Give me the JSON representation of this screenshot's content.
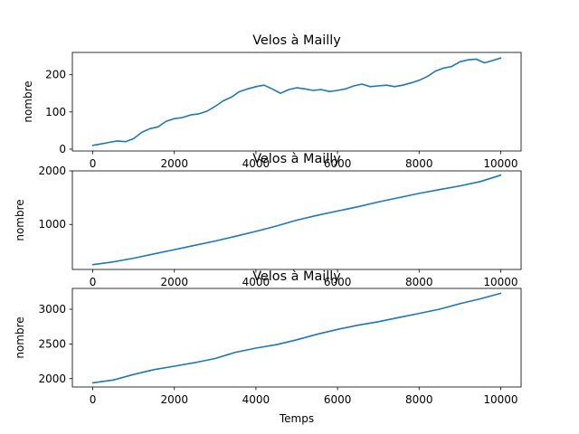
{
  "chart_data": [
    {
      "type": "line",
      "title": "Velos à Mailly",
      "xlabel": "",
      "ylabel": "nombre",
      "xlim": [
        -500,
        10500
      ],
      "ylim": [
        -5,
        260
      ],
      "xticks": [
        0,
        2000,
        4000,
        6000,
        8000,
        10000
      ],
      "yticks": [
        0,
        100,
        200
      ],
      "grid": false,
      "color": "#1f77b4",
      "series": [
        {
          "x": [
            0,
            200,
            400,
            600,
            800,
            1000,
            1200,
            1400,
            1600,
            1800,
            2000,
            2200,
            2400,
            2600,
            2800,
            3000,
            3200,
            3400,
            3600,
            3800,
            4000,
            4200,
            4400,
            4600,
            4800,
            5000,
            5200,
            5400,
            5600,
            5800,
            6000,
            6200,
            6400,
            6600,
            6800,
            7000,
            7200,
            7400,
            7600,
            7800,
            8000,
            8200,
            8400,
            8600,
            8800,
            9000,
            9200,
            9400,
            9600,
            9800,
            10000
          ],
          "y": [
            10,
            14,
            18,
            22,
            20,
            28,
            45,
            55,
            60,
            75,
            82,
            85,
            92,
            95,
            102,
            115,
            130,
            140,
            155,
            162,
            168,
            172,
            162,
            150,
            160,
            165,
            162,
            158,
            160,
            155,
            158,
            162,
            170,
            175,
            168,
            170,
            172,
            168,
            172,
            178,
            185,
            195,
            210,
            218,
            222,
            235,
            240,
            242,
            232,
            238,
            245
          ]
        }
      ]
    },
    {
      "type": "line",
      "title": "Velos à Mailly",
      "xlabel": "",
      "ylabel": "nombre",
      "xlim": [
        -500,
        10500
      ],
      "ylim": [
        160,
        2000
      ],
      "xticks": [
        0,
        2000,
        4000,
        6000,
        8000,
        10000
      ],
      "yticks": [
        1000,
        2000
      ],
      "grid": false,
      "color": "#1f77b4",
      "series": [
        {
          "x": [
            0,
            500,
            1000,
            1500,
            2000,
            2500,
            3000,
            3500,
            4000,
            4500,
            5000,
            5500,
            6000,
            6500,
            7000,
            7500,
            8000,
            8500,
            9000,
            9500,
            10000
          ],
          "y": [
            250,
            300,
            370,
            450,
            530,
            610,
            690,
            780,
            870,
            970,
            1080,
            1170,
            1250,
            1330,
            1420,
            1500,
            1580,
            1650,
            1720,
            1800,
            1920
          ]
        }
      ]
    },
    {
      "type": "line",
      "title": "Velos à Mailly",
      "xlabel": "Temps",
      "ylabel": "nombre",
      "xlim": [
        -500,
        10500
      ],
      "ylim": [
        1880,
        3300
      ],
      "xticks": [
        0,
        2000,
        4000,
        6000,
        8000,
        10000
      ],
      "yticks": [
        2000,
        2500,
        3000
      ],
      "grid": false,
      "color": "#1f77b4",
      "series": [
        {
          "x": [
            0,
            500,
            1000,
            1500,
            2000,
            2500,
            3000,
            3500,
            4000,
            4500,
            5000,
            5500,
            6000,
            6500,
            7000,
            7500,
            8000,
            8500,
            9000,
            9500,
            10000
          ],
          "y": [
            1940,
            1980,
            2060,
            2130,
            2180,
            2230,
            2290,
            2380,
            2440,
            2490,
            2560,
            2640,
            2710,
            2770,
            2820,
            2880,
            2940,
            3000,
            3080,
            3150,
            3230
          ]
        }
      ]
    }
  ]
}
